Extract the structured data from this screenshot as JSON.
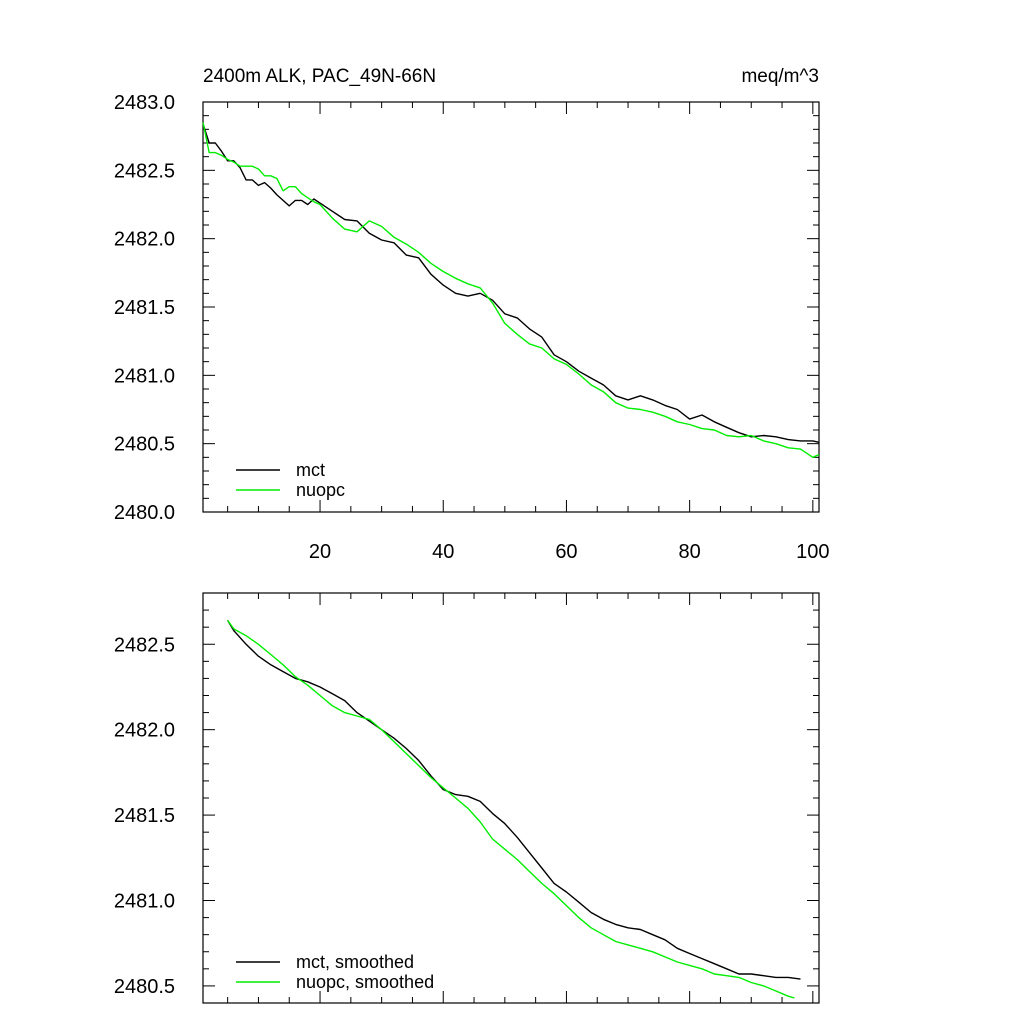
{
  "colors": {
    "mct": "#000000",
    "nuopc": "#00ee00"
  },
  "chart_data": [
    {
      "type": "line",
      "title": "2400m ALK, PAC_49N-66N",
      "units": "meq/m^3",
      "xlim": [
        1,
        101
      ],
      "ylim": [
        2480.0,
        2483.0
      ],
      "xticks": [
        20,
        40,
        60,
        80,
        100
      ],
      "xtick_labels": [
        "20",
        "40",
        "60",
        "80",
        "100"
      ],
      "yticks": [
        2480.0,
        2480.5,
        2481.0,
        2481.5,
        2482.0,
        2482.5,
        2483.0
      ],
      "ytick_labels": [
        "2480.0",
        "2480.5",
        "2481.0",
        "2481.5",
        "2482.0",
        "2482.5",
        "2483.0"
      ],
      "legend_position": "bottom-left",
      "series": [
        {
          "name": "mct",
          "color": "#000000",
          "points": [
            [
              1,
              2482.84
            ],
            [
              2,
              2482.7
            ],
            [
              3,
              2482.7
            ],
            [
              4,
              2482.64
            ],
            [
              5,
              2482.57
            ],
            [
              6,
              2482.57
            ],
            [
              7,
              2482.52
            ],
            [
              8,
              2482.43
            ],
            [
              9,
              2482.43
            ],
            [
              10,
              2482.39
            ],
            [
              11,
              2482.41
            ],
            [
              12,
              2482.37
            ],
            [
              13,
              2482.32
            ],
            [
              14,
              2482.28
            ],
            [
              15,
              2482.24
            ],
            [
              16,
              2482.28
            ],
            [
              17,
              2482.28
            ],
            [
              18,
              2482.25
            ],
            [
              19,
              2482.29
            ],
            [
              20,
              2482.26
            ],
            [
              22,
              2482.2
            ],
            [
              24,
              2482.14
            ],
            [
              26,
              2482.13
            ],
            [
              28,
              2482.04
            ],
            [
              30,
              2481.99
            ],
            [
              32,
              2481.97
            ],
            [
              34,
              2481.88
            ],
            [
              36,
              2481.86
            ],
            [
              38,
              2481.74
            ],
            [
              40,
              2481.66
            ],
            [
              42,
              2481.6
            ],
            [
              44,
              2481.58
            ],
            [
              46,
              2481.6
            ],
            [
              48,
              2481.55
            ],
            [
              50,
              2481.45
            ],
            [
              52,
              2481.42
            ],
            [
              54,
              2481.34
            ],
            [
              56,
              2481.28
            ],
            [
              58,
              2481.15
            ],
            [
              60,
              2481.1
            ],
            [
              62,
              2481.03
            ],
            [
              64,
              2480.98
            ],
            [
              66,
              2480.93
            ],
            [
              68,
              2480.85
            ],
            [
              70,
              2480.82
            ],
            [
              72,
              2480.85
            ],
            [
              74,
              2480.82
            ],
            [
              76,
              2480.78
            ],
            [
              78,
              2480.75
            ],
            [
              80,
              2480.68
            ],
            [
              82,
              2480.71
            ],
            [
              84,
              2480.66
            ],
            [
              86,
              2480.62
            ],
            [
              88,
              2480.58
            ],
            [
              90,
              2480.55
            ],
            [
              92,
              2480.56
            ],
            [
              94,
              2480.55
            ],
            [
              96,
              2480.53
            ],
            [
              98,
              2480.52
            ],
            [
              100,
              2480.52
            ],
            [
              101,
              2480.51
            ]
          ]
        },
        {
          "name": "nuopc",
          "color": "#00ee00",
          "points": [
            [
              1,
              2482.85
            ],
            [
              2,
              2482.63
            ],
            [
              3,
              2482.63
            ],
            [
              4,
              2482.61
            ],
            [
              5,
              2482.58
            ],
            [
              6,
              2482.56
            ],
            [
              7,
              2482.53
            ],
            [
              8,
              2482.53
            ],
            [
              9,
              2482.53
            ],
            [
              10,
              2482.51
            ],
            [
              11,
              2482.46
            ],
            [
              12,
              2482.46
            ],
            [
              13,
              2482.44
            ],
            [
              14,
              2482.35
            ],
            [
              15,
              2482.38
            ],
            [
              16,
              2482.38
            ],
            [
              17,
              2482.33
            ],
            [
              18,
              2482.3
            ],
            [
              19,
              2482.27
            ],
            [
              20,
              2482.25
            ],
            [
              22,
              2482.15
            ],
            [
              24,
              2482.07
            ],
            [
              26,
              2482.05
            ],
            [
              28,
              2482.13
            ],
            [
              30,
              2482.09
            ],
            [
              32,
              2482.01
            ],
            [
              34,
              2481.96
            ],
            [
              36,
              2481.9
            ],
            [
              38,
              2481.82
            ],
            [
              40,
              2481.76
            ],
            [
              42,
              2481.71
            ],
            [
              44,
              2481.67
            ],
            [
              46,
              2481.64
            ],
            [
              48,
              2481.53
            ],
            [
              50,
              2481.38
            ],
            [
              52,
              2481.3
            ],
            [
              54,
              2481.23
            ],
            [
              56,
              2481.2
            ],
            [
              58,
              2481.12
            ],
            [
              60,
              2481.08
            ],
            [
              62,
              2481.01
            ],
            [
              64,
              2480.93
            ],
            [
              66,
              2480.88
            ],
            [
              68,
              2480.8
            ],
            [
              70,
              2480.76
            ],
            [
              72,
              2480.75
            ],
            [
              74,
              2480.73
            ],
            [
              76,
              2480.7
            ],
            [
              78,
              2480.66
            ],
            [
              80,
              2480.64
            ],
            [
              82,
              2480.61
            ],
            [
              84,
              2480.6
            ],
            [
              86,
              2480.56
            ],
            [
              88,
              2480.55
            ],
            [
              90,
              2480.56
            ],
            [
              92,
              2480.52
            ],
            [
              94,
              2480.5
            ],
            [
              96,
              2480.47
            ],
            [
              98,
              2480.46
            ],
            [
              100,
              2480.4
            ],
            [
              101,
              2480.42
            ]
          ]
        }
      ]
    },
    {
      "type": "line",
      "title": "",
      "xlim": [
        1,
        101
      ],
      "ylim": [
        2480.4,
        2482.8
      ],
      "xticks": [
        20,
        40,
        60,
        80,
        100
      ],
      "yticks": [
        2480.5,
        2481.0,
        2481.5,
        2482.0,
        2482.5
      ],
      "ytick_labels": [
        "2480.5",
        "2481.0",
        "2481.5",
        "2482.0",
        "2482.5"
      ],
      "legend_position": "bottom-left",
      "series": [
        {
          "name": "mct, smoothed",
          "color": "#000000",
          "points": [
            [
              5,
              2482.64
            ],
            [
              6,
              2482.58
            ],
            [
              8,
              2482.5
            ],
            [
              10,
              2482.43
            ],
            [
              12,
              2482.38
            ],
            [
              14,
              2482.34
            ],
            [
              16,
              2482.3
            ],
            [
              18,
              2482.28
            ],
            [
              20,
              2482.25
            ],
            [
              22,
              2482.21
            ],
            [
              24,
              2482.17
            ],
            [
              26,
              2482.1
            ],
            [
              28,
              2482.05
            ],
            [
              30,
              2482.0
            ],
            [
              32,
              2481.95
            ],
            [
              34,
              2481.89
            ],
            [
              36,
              2481.82
            ],
            [
              38,
              2481.73
            ],
            [
              40,
              2481.65
            ],
            [
              42,
              2481.62
            ],
            [
              44,
              2481.61
            ],
            [
              46,
              2481.58
            ],
            [
              48,
              2481.51
            ],
            [
              50,
              2481.45
            ],
            [
              52,
              2481.37
            ],
            [
              54,
              2481.28
            ],
            [
              56,
              2481.19
            ],
            [
              58,
              2481.1
            ],
            [
              60,
              2481.05
            ],
            [
              62,
              2480.99
            ],
            [
              64,
              2480.93
            ],
            [
              66,
              2480.89
            ],
            [
              68,
              2480.86
            ],
            [
              70,
              2480.84
            ],
            [
              72,
              2480.83
            ],
            [
              74,
              2480.8
            ],
            [
              76,
              2480.77
            ],
            [
              78,
              2480.72
            ],
            [
              80,
              2480.69
            ],
            [
              82,
              2480.66
            ],
            [
              84,
              2480.63
            ],
            [
              86,
              2480.6
            ],
            [
              88,
              2480.57
            ],
            [
              90,
              2480.57
            ],
            [
              92,
              2480.56
            ],
            [
              94,
              2480.55
            ],
            [
              96,
              2480.55
            ],
            [
              98,
              2480.54
            ]
          ]
        },
        {
          "name": "nuopc, smoothed",
          "color": "#00ee00",
          "points": [
            [
              5,
              2482.64
            ],
            [
              6,
              2482.59
            ],
            [
              8,
              2482.55
            ],
            [
              10,
              2482.5
            ],
            [
              12,
              2482.44
            ],
            [
              14,
              2482.38
            ],
            [
              16,
              2482.31
            ],
            [
              18,
              2482.26
            ],
            [
              20,
              2482.2
            ],
            [
              22,
              2482.14
            ],
            [
              24,
              2482.1
            ],
            [
              26,
              2482.08
            ],
            [
              28,
              2482.06
            ],
            [
              30,
              2482.0
            ],
            [
              32,
              2481.93
            ],
            [
              34,
              2481.86
            ],
            [
              36,
              2481.79
            ],
            [
              38,
              2481.72
            ],
            [
              40,
              2481.66
            ],
            [
              42,
              2481.6
            ],
            [
              44,
              2481.54
            ],
            [
              46,
              2481.46
            ],
            [
              48,
              2481.36
            ],
            [
              50,
              2481.3
            ],
            [
              52,
              2481.24
            ],
            [
              54,
              2481.17
            ],
            [
              56,
              2481.1
            ],
            [
              58,
              2481.04
            ],
            [
              60,
              2480.97
            ],
            [
              62,
              2480.9
            ],
            [
              64,
              2480.84
            ],
            [
              66,
              2480.8
            ],
            [
              68,
              2480.76
            ],
            [
              70,
              2480.74
            ],
            [
              72,
              2480.72
            ],
            [
              74,
              2480.7
            ],
            [
              76,
              2480.67
            ],
            [
              78,
              2480.64
            ],
            [
              80,
              2480.62
            ],
            [
              82,
              2480.6
            ],
            [
              84,
              2480.57
            ],
            [
              86,
              2480.56
            ],
            [
              88,
              2480.55
            ],
            [
              90,
              2480.52
            ],
            [
              92,
              2480.5
            ],
            [
              94,
              2480.47
            ],
            [
              96,
              2480.44
            ],
            [
              97,
              2480.43
            ]
          ]
        }
      ]
    }
  ]
}
